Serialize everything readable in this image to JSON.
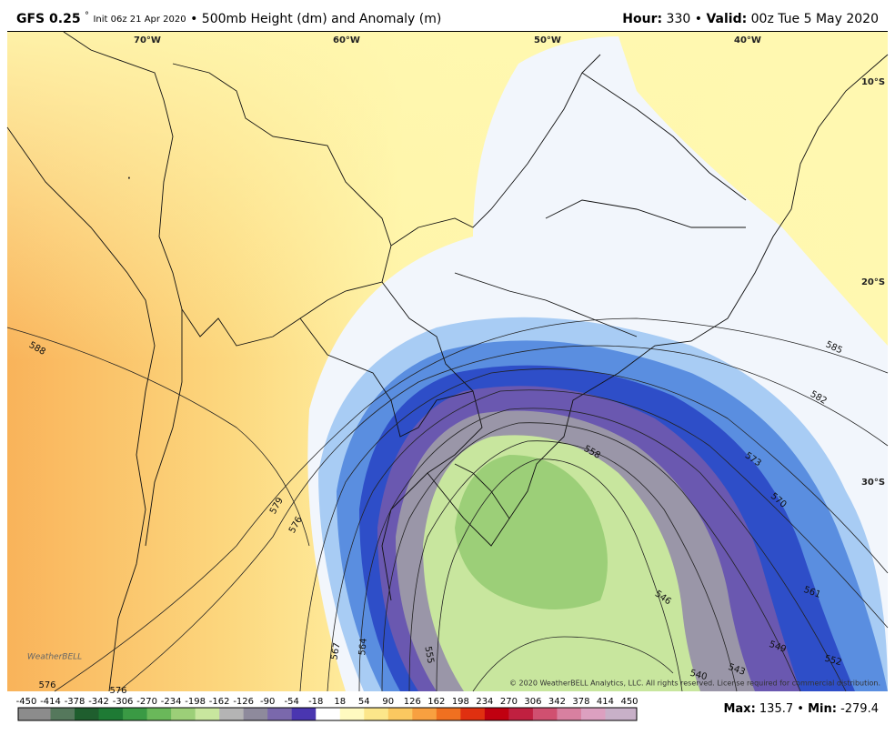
{
  "header": {
    "model": "GFS 0.25",
    "degree": "°",
    "init": "Init 06z 21 Apr 2020",
    "separator": "•",
    "field": "500mb Height (dm) and Anomaly (m)",
    "hour_label": "Hour:",
    "hour": 330,
    "separator2": "•",
    "valid_label": "Valid:",
    "valid": "00z Tue 5 May 2020"
  },
  "map": {
    "longitude_labels": [
      "70°W",
      "60°W",
      "50°W",
      "40°W"
    ],
    "latitude_labels": [
      "10°S",
      "20°S",
      "30°S"
    ],
    "contour_labels": [
      588,
      579,
      576,
      585,
      582,
      573,
      570,
      558,
      561,
      546,
      549,
      552,
      543,
      540,
      555,
      564,
      567,
      576,
      576
    ],
    "copyright": "© 2020 WeatherBELL Analytics, LLC. All rights reserved. License required for commercial distribution.",
    "logo": "WeatherBELL"
  },
  "colorbar": {
    "ticks": [
      -450,
      -414,
      -378,
      -342,
      -306,
      -270,
      -234,
      -198,
      -162,
      -126,
      -90,
      -54,
      -18,
      18,
      54,
      90,
      126,
      162,
      198,
      234,
      270,
      306,
      342,
      378,
      414,
      450
    ],
    "colors": [
      "#8c8c8c",
      "#55785c",
      "#1f5e2e",
      "#1e7a34",
      "#3a9a44",
      "#6ab85a",
      "#9ccf78",
      "#c8e69e",
      "#b4b4b4",
      "#8e8a9c",
      "#7a68ac",
      "#4a36b0",
      "#ffffff",
      "#fffac0",
      "#fce68a",
      "#fbc860",
      "#f8a040",
      "#f07020",
      "#e03010",
      "#c00010",
      "#c02040",
      "#d05070",
      "#d880a0",
      "#dca0c0",
      "#c8b0c8"
    ],
    "blue_colors": [
      "#2e4ec8",
      "#5a8ee0",
      "#a8ccf4"
    ]
  },
  "footer": {
    "max_label": "Max:",
    "max": 135.7,
    "separator": "•",
    "min_label": "Min:",
    "min": -279.4
  }
}
